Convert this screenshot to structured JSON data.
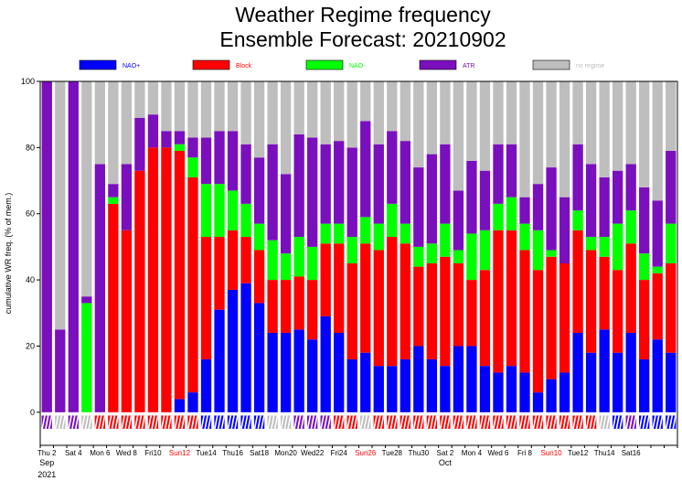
{
  "chart_data": {
    "type": "bar",
    "title": "Weather Regime frequency",
    "subtitle": "Ensemble Forecast: 20210902",
    "ylabel": "cumulative WR freq. (% of mem.)",
    "ylim": [
      -10,
      100
    ],
    "yticks": [
      0,
      20,
      40,
      60,
      80,
      100
    ],
    "grid": false,
    "legend_position": "top",
    "colors": {
      "nao_plus": "#0000ff",
      "block": "#ff0000",
      "nao_minus": "#00ff00",
      "atr": "#7a0fbe",
      "no_regime": "#bebebe",
      "axis": "#000080",
      "weekend": "#ff0000"
    },
    "legend": [
      {
        "key": "nao_plus",
        "label": "NAO+"
      },
      {
        "key": "block",
        "label": "Block"
      },
      {
        "key": "nao_minus",
        "label": "NAO-"
      },
      {
        "key": "atr",
        "label": "ATR"
      },
      {
        "key": "no_regime",
        "label": "no regime"
      }
    ],
    "series": [
      {
        "key": "nao_plus",
        "values": [
          0,
          0,
          0,
          0,
          0,
          0,
          0,
          0,
          0,
          0,
          4,
          6,
          16,
          31,
          37,
          39,
          33,
          24,
          24,
          25,
          22,
          29,
          24,
          16,
          18,
          14,
          14,
          16,
          20,
          16,
          14,
          20,
          20,
          14,
          12,
          14,
          12,
          6,
          10,
          12,
          24,
          18,
          25,
          18,
          24,
          16,
          22,
          18
        ]
      },
      {
        "key": "block",
        "values": [
          0,
          0,
          0,
          0,
          0,
          63,
          55,
          73,
          80,
          80,
          75,
          65,
          37,
          22,
          18,
          14,
          16,
          16,
          16,
          16,
          18,
          22,
          27,
          29,
          33,
          35,
          39,
          35,
          24,
          29,
          33,
          25,
          20,
          29,
          43,
          41,
          37,
          37,
          37,
          33,
          31,
          31,
          22,
          25,
          27,
          24,
          20,
          27
        ]
      },
      {
        "key": "nao_minus",
        "values": [
          0,
          0,
          0,
          33,
          0,
          2,
          0,
          0,
          0,
          0,
          2,
          6,
          16,
          16,
          12,
          10,
          8,
          12,
          8,
          12,
          10,
          6,
          6,
          8,
          8,
          8,
          10,
          6,
          6,
          6,
          10,
          4,
          14,
          12,
          8,
          10,
          8,
          12,
          2,
          0,
          6,
          4,
          6,
          14,
          10,
          8,
          2,
          12
        ]
      },
      {
        "key": "atr",
        "values": [
          100,
          25,
          100,
          2,
          75,
          4,
          20,
          16,
          10,
          5,
          4,
          6,
          14,
          16,
          18,
          18,
          20,
          29,
          24,
          31,
          33,
          24,
          25,
          27,
          29,
          24,
          22,
          25,
          24,
          27,
          24,
          18,
          22,
          18,
          18,
          16,
          8,
          14,
          25,
          20,
          20,
          22,
          18,
          16,
          14,
          20,
          20,
          22
        ]
      },
      {
        "key": "no_regime",
        "values": [
          0,
          75,
          0,
          65,
          25,
          31,
          25,
          11,
          10,
          15,
          15,
          17,
          17,
          15,
          15,
          19,
          23,
          19,
          28,
          16,
          17,
          19,
          18,
          20,
          12,
          19,
          15,
          18,
          26,
          22,
          19,
          33,
          24,
          27,
          19,
          19,
          35,
          31,
          26,
          35,
          19,
          25,
          29,
          27,
          25,
          32,
          36,
          21
        ]
      }
    ],
    "bottom_row": [
      "atr",
      "no_regime",
      "atr",
      "no_regime",
      "block",
      "block",
      "block",
      "block",
      "block",
      "block",
      "block",
      "block",
      "nao_plus",
      "nao_plus",
      "nao_plus",
      "nao_plus",
      "nao_plus",
      "no_regime",
      "no_regime",
      "atr",
      "atr",
      "atr",
      "block",
      "block",
      "no_regime",
      "block",
      "block",
      "block",
      "block",
      "block",
      "block",
      "block",
      "block",
      "block",
      "block",
      "block",
      "block",
      "block",
      "block",
      "block",
      "block",
      "block",
      "no_regime",
      "nao_plus",
      "atr",
      "nao_plus",
      "nao_plus",
      "nao_plus"
    ],
    "x_labels": [
      {
        "day": 0,
        "text": "Thu 2",
        "weekend": false
      },
      {
        "day": 2,
        "text": "Sat 4",
        "weekend": false
      },
      {
        "day": 4,
        "text": "Mon 6",
        "weekend": false
      },
      {
        "day": 6,
        "text": "Wed 8",
        "weekend": false
      },
      {
        "day": 8,
        "text": "Fri10",
        "weekend": false
      },
      {
        "day": 10,
        "text": "Sun12",
        "weekend": true
      },
      {
        "day": 12,
        "text": "Tue14",
        "weekend": false
      },
      {
        "day": 14,
        "text": "Thu16",
        "weekend": false
      },
      {
        "day": 16,
        "text": "Sat18",
        "weekend": false
      },
      {
        "day": 18,
        "text": "Mon20",
        "weekend": false
      },
      {
        "day": 20,
        "text": "Wed22",
        "weekend": false
      },
      {
        "day": 22,
        "text": "Fri24",
        "weekend": false
      },
      {
        "day": 24,
        "text": "Sun26",
        "weekend": true
      },
      {
        "day": 26,
        "text": "Tue28",
        "weekend": false
      },
      {
        "day": 28,
        "text": "Thu30",
        "weekend": false
      },
      {
        "day": 30,
        "text": "Sat 2",
        "weekend": false
      },
      {
        "day": 32,
        "text": "Mon 4",
        "weekend": false
      },
      {
        "day": 34,
        "text": "Wed 6",
        "weekend": false
      },
      {
        "day": 36,
        "text": "Fri 8",
        "weekend": false
      },
      {
        "day": 38,
        "text": "Sun10",
        "weekend": true
      },
      {
        "day": 40,
        "text": "Tue12",
        "weekend": false
      },
      {
        "day": 42,
        "text": "Thu14",
        "weekend": false
      },
      {
        "day": 44,
        "text": "Sat16",
        "weekend": false
      }
    ],
    "month_labels": [
      {
        "day": 0,
        "text": "Sep"
      },
      {
        "day": 30,
        "text": "Oct"
      }
    ],
    "year_label": "2021"
  }
}
